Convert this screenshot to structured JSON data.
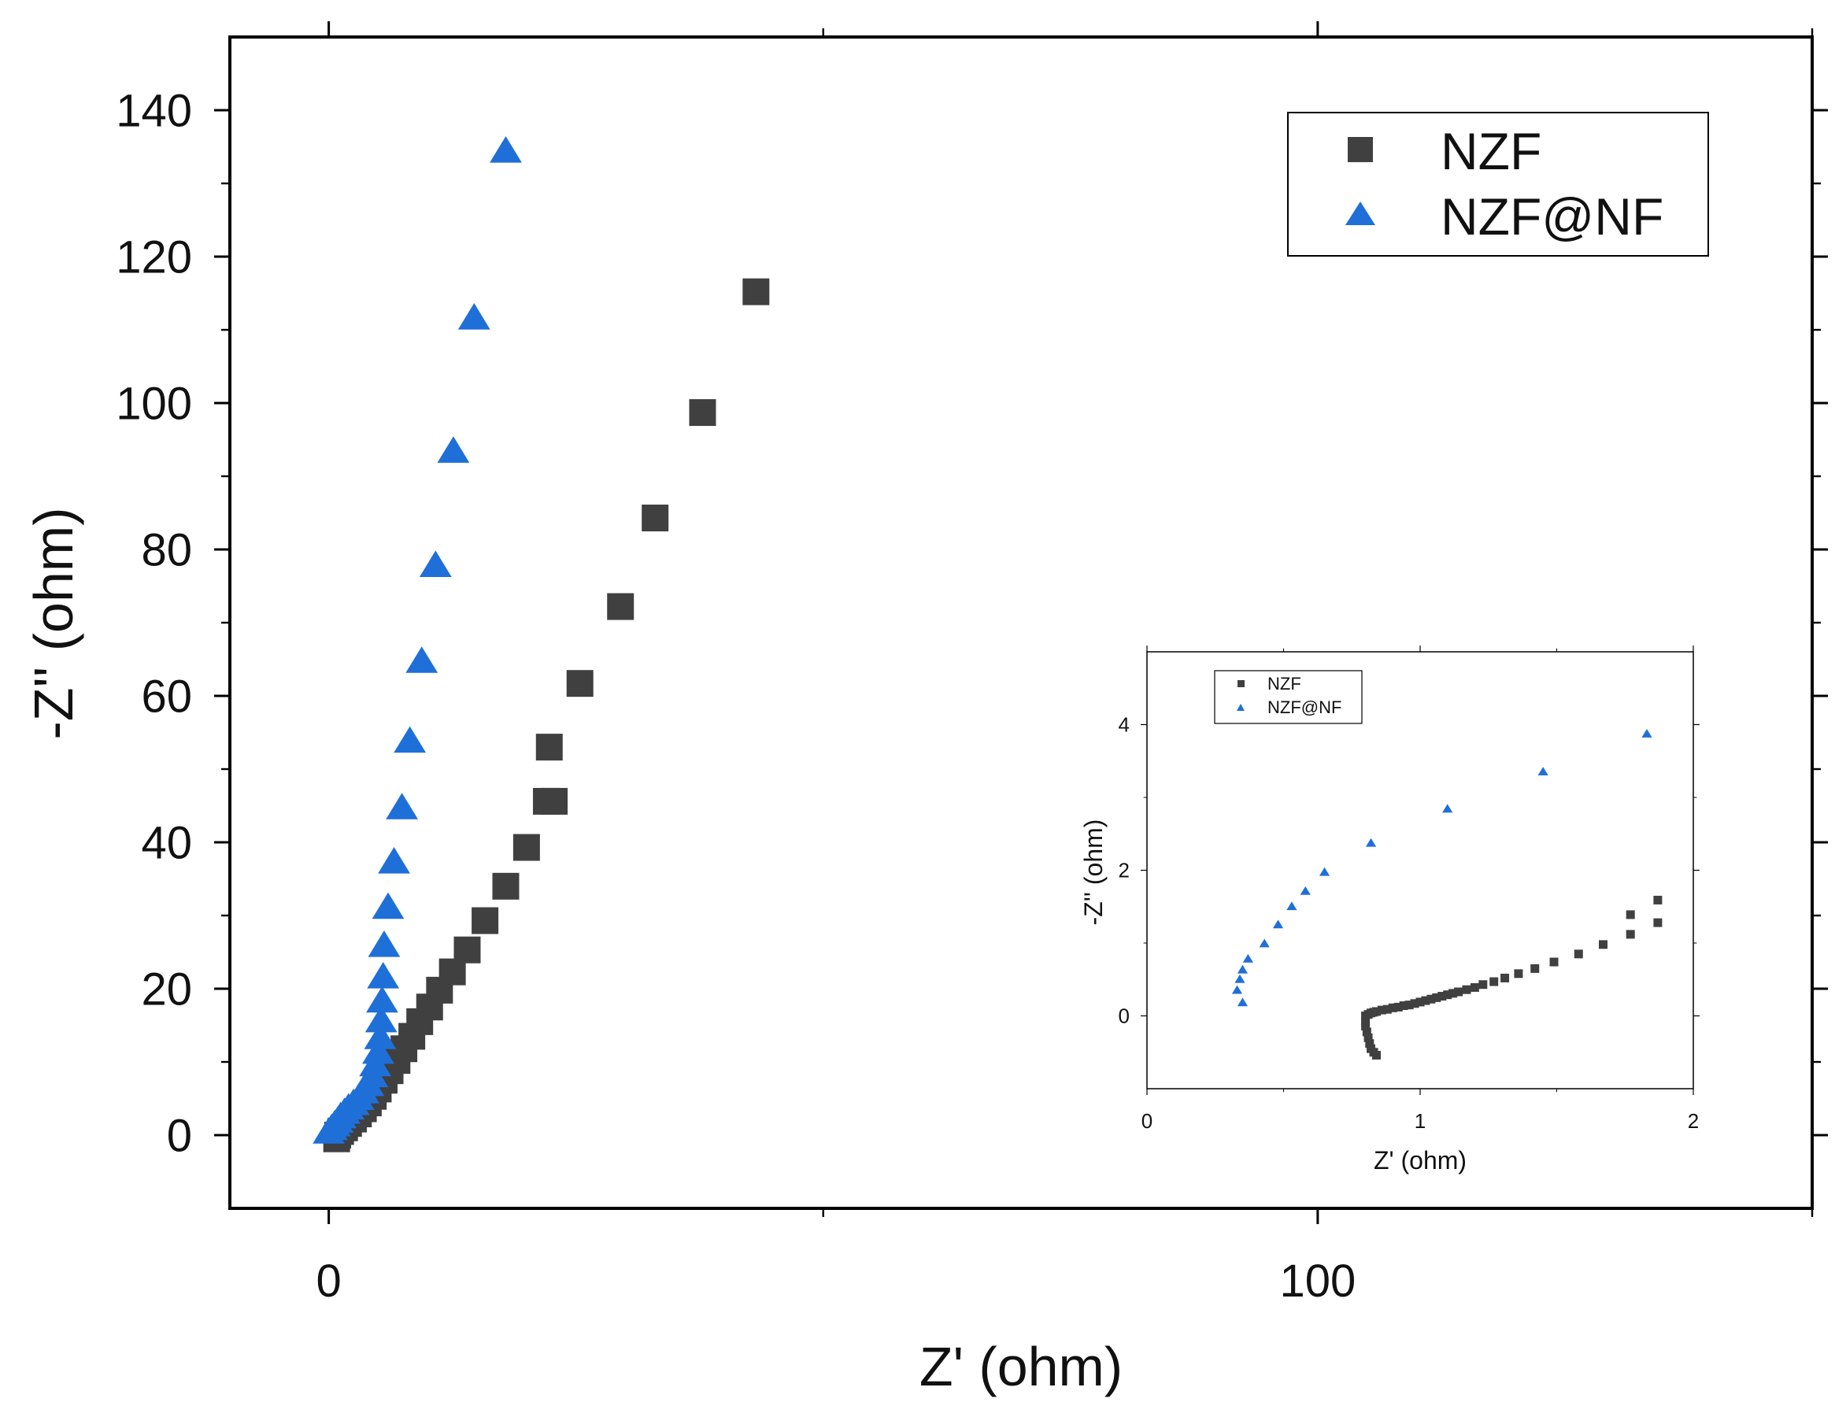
{
  "chart_data": [
    {
      "id": "main",
      "type": "scatter",
      "xlabel": "Z' (ohm)",
      "ylabel": "-Z'' (ohm)",
      "xlim": [
        -10,
        150
      ],
      "ylim": [
        -10,
        150
      ],
      "xticks": [
        0,
        100
      ],
      "yticks": [
        0,
        20,
        40,
        60,
        80,
        100,
        120,
        140
      ],
      "legend": {
        "placement": "top-right"
      },
      "series": [
        {
          "name": "NZF",
          "marker": "square",
          "color": "#404040",
          "points": [
            [
              0.8,
              -0.5
            ],
            [
              0.9,
              0
            ],
            [
              1.2,
              0.5
            ],
            [
              1.6,
              1.0
            ],
            [
              2.0,
              1.6
            ],
            [
              2.5,
              2.2
            ],
            [
              3.0,
              2.9
            ],
            [
              3.5,
              3.6
            ],
            [
              4.0,
              4.4
            ],
            [
              4.5,
              5.3
            ],
            [
              5.0,
              6.3
            ],
            [
              5.6,
              7.5
            ],
            [
              6.2,
              8.8
            ],
            [
              6.9,
              10.2
            ],
            [
              7.6,
              11.8
            ],
            [
              8.4,
              13.5
            ],
            [
              9.2,
              15.5
            ],
            [
              10.2,
              17.5
            ],
            [
              11.2,
              19.8
            ],
            [
              12.5,
              22.3
            ],
            [
              14.0,
              25.3
            ],
            [
              15.8,
              29.3
            ],
            [
              17.9,
              34.0
            ],
            [
              20.0,
              39.3
            ],
            [
              22.0,
              45.6
            ],
            [
              22.8,
              45.6
            ],
            [
              22.3,
              53.0
            ],
            [
              25.4,
              61.7
            ],
            [
              29.5,
              72.2
            ],
            [
              33.0,
              84.3
            ],
            [
              37.8,
              98.7
            ],
            [
              43.2,
              115.2
            ]
          ]
        },
        {
          "name": "NZF@NF",
          "marker": "triangle",
          "color": "#1f6fd8",
          "points": [
            [
              0.0,
              0.3
            ],
            [
              0.3,
              0.8
            ],
            [
              0.6,
              1.3
            ],
            [
              0.9,
              1.8
            ],
            [
              1.2,
              2.4
            ],
            [
              1.6,
              3.0
            ],
            [
              2.0,
              3.6
            ],
            [
              2.5,
              4.2
            ],
            [
              3.0,
              4.9
            ],
            [
              3.5,
              5.8
            ],
            [
              4.0,
              6.8
            ],
            [
              4.4,
              8.0
            ],
            [
              4.7,
              9.5
            ],
            [
              5.0,
              11.2
            ],
            [
              5.2,
              13.2
            ],
            [
              5.3,
              15.5
            ],
            [
              5.4,
              18.2
            ],
            [
              5.5,
              21.5
            ],
            [
              5.6,
              25.8
            ],
            [
              6.0,
              31.0
            ],
            [
              6.6,
              37.2
            ],
            [
              7.4,
              44.6
            ],
            [
              8.2,
              53.7
            ],
            [
              9.4,
              64.6
            ],
            [
              10.8,
              77.7
            ],
            [
              12.6,
              93.3
            ],
            [
              14.7,
              111.5
            ],
            [
              17.9,
              134.3
            ]
          ]
        }
      ]
    },
    {
      "id": "inset",
      "type": "scatter",
      "xlabel": "Z' (ohm)",
      "ylabel": "-Z'' (ohm)",
      "xlim": [
        0,
        2
      ],
      "ylim": [
        -1,
        5
      ],
      "xticks": [
        0,
        1,
        2
      ],
      "yticks": [
        0,
        2,
        4
      ],
      "legend": {
        "placement": "top-left"
      },
      "series": [
        {
          "name": "NZF",
          "marker": "square",
          "color": "#404040",
          "points": [
            [
              0.84,
              -0.54
            ],
            [
              0.83,
              -0.5
            ],
            [
              0.82,
              -0.45
            ],
            [
              0.815,
              -0.38
            ],
            [
              0.81,
              -0.3
            ],
            [
              0.805,
              -0.22
            ],
            [
              0.8,
              -0.14
            ],
            [
              0.8,
              -0.07
            ],
            [
              0.8,
              0.0
            ],
            [
              0.81,
              0.02
            ],
            [
              0.82,
              0.04
            ],
            [
              0.83,
              0.05
            ],
            [
              0.84,
              0.06
            ],
            [
              0.86,
              0.08
            ],
            [
              0.88,
              0.09
            ],
            [
              0.9,
              0.11
            ],
            [
              0.92,
              0.12
            ],
            [
              0.94,
              0.14
            ],
            [
              0.96,
              0.15
            ],
            [
              0.98,
              0.17
            ],
            [
              1.0,
              0.19
            ],
            [
              1.02,
              0.21
            ],
            [
              1.04,
              0.23
            ],
            [
              1.06,
              0.25
            ],
            [
              1.08,
              0.27
            ],
            [
              1.1,
              0.29
            ],
            [
              1.12,
              0.31
            ],
            [
              1.14,
              0.33
            ],
            [
              1.17,
              0.36
            ],
            [
              1.2,
              0.39
            ],
            [
              1.23,
              0.43
            ],
            [
              1.27,
              0.47
            ],
            [
              1.31,
              0.52
            ],
            [
              1.36,
              0.58
            ],
            [
              1.42,
              0.65
            ],
            [
              1.49,
              0.74
            ],
            [
              1.58,
              0.85
            ],
            [
              1.67,
              0.98
            ],
            [
              1.77,
              1.12
            ],
            [
              1.87,
              1.28
            ],
            [
              1.77,
              1.39
            ],
            [
              1.87,
              1.59
            ]
          ]
        },
        {
          "name": "NZF@NF",
          "marker": "triangle",
          "color": "#1f6fd8",
          "points": [
            [
              0.35,
              0.18
            ],
            [
              0.33,
              0.35
            ],
            [
              0.34,
              0.5
            ],
            [
              0.35,
              0.63
            ],
            [
              0.37,
              0.78
            ],
            [
              0.43,
              0.99
            ],
            [
              0.48,
              1.25
            ],
            [
              0.53,
              1.5
            ],
            [
              0.58,
              1.71
            ],
            [
              0.65,
              1.97
            ],
            [
              0.82,
              2.37
            ],
            [
              1.1,
              2.84
            ],
            [
              1.45,
              3.35
            ],
            [
              1.83,
              3.87
            ]
          ]
        }
      ]
    }
  ]
}
